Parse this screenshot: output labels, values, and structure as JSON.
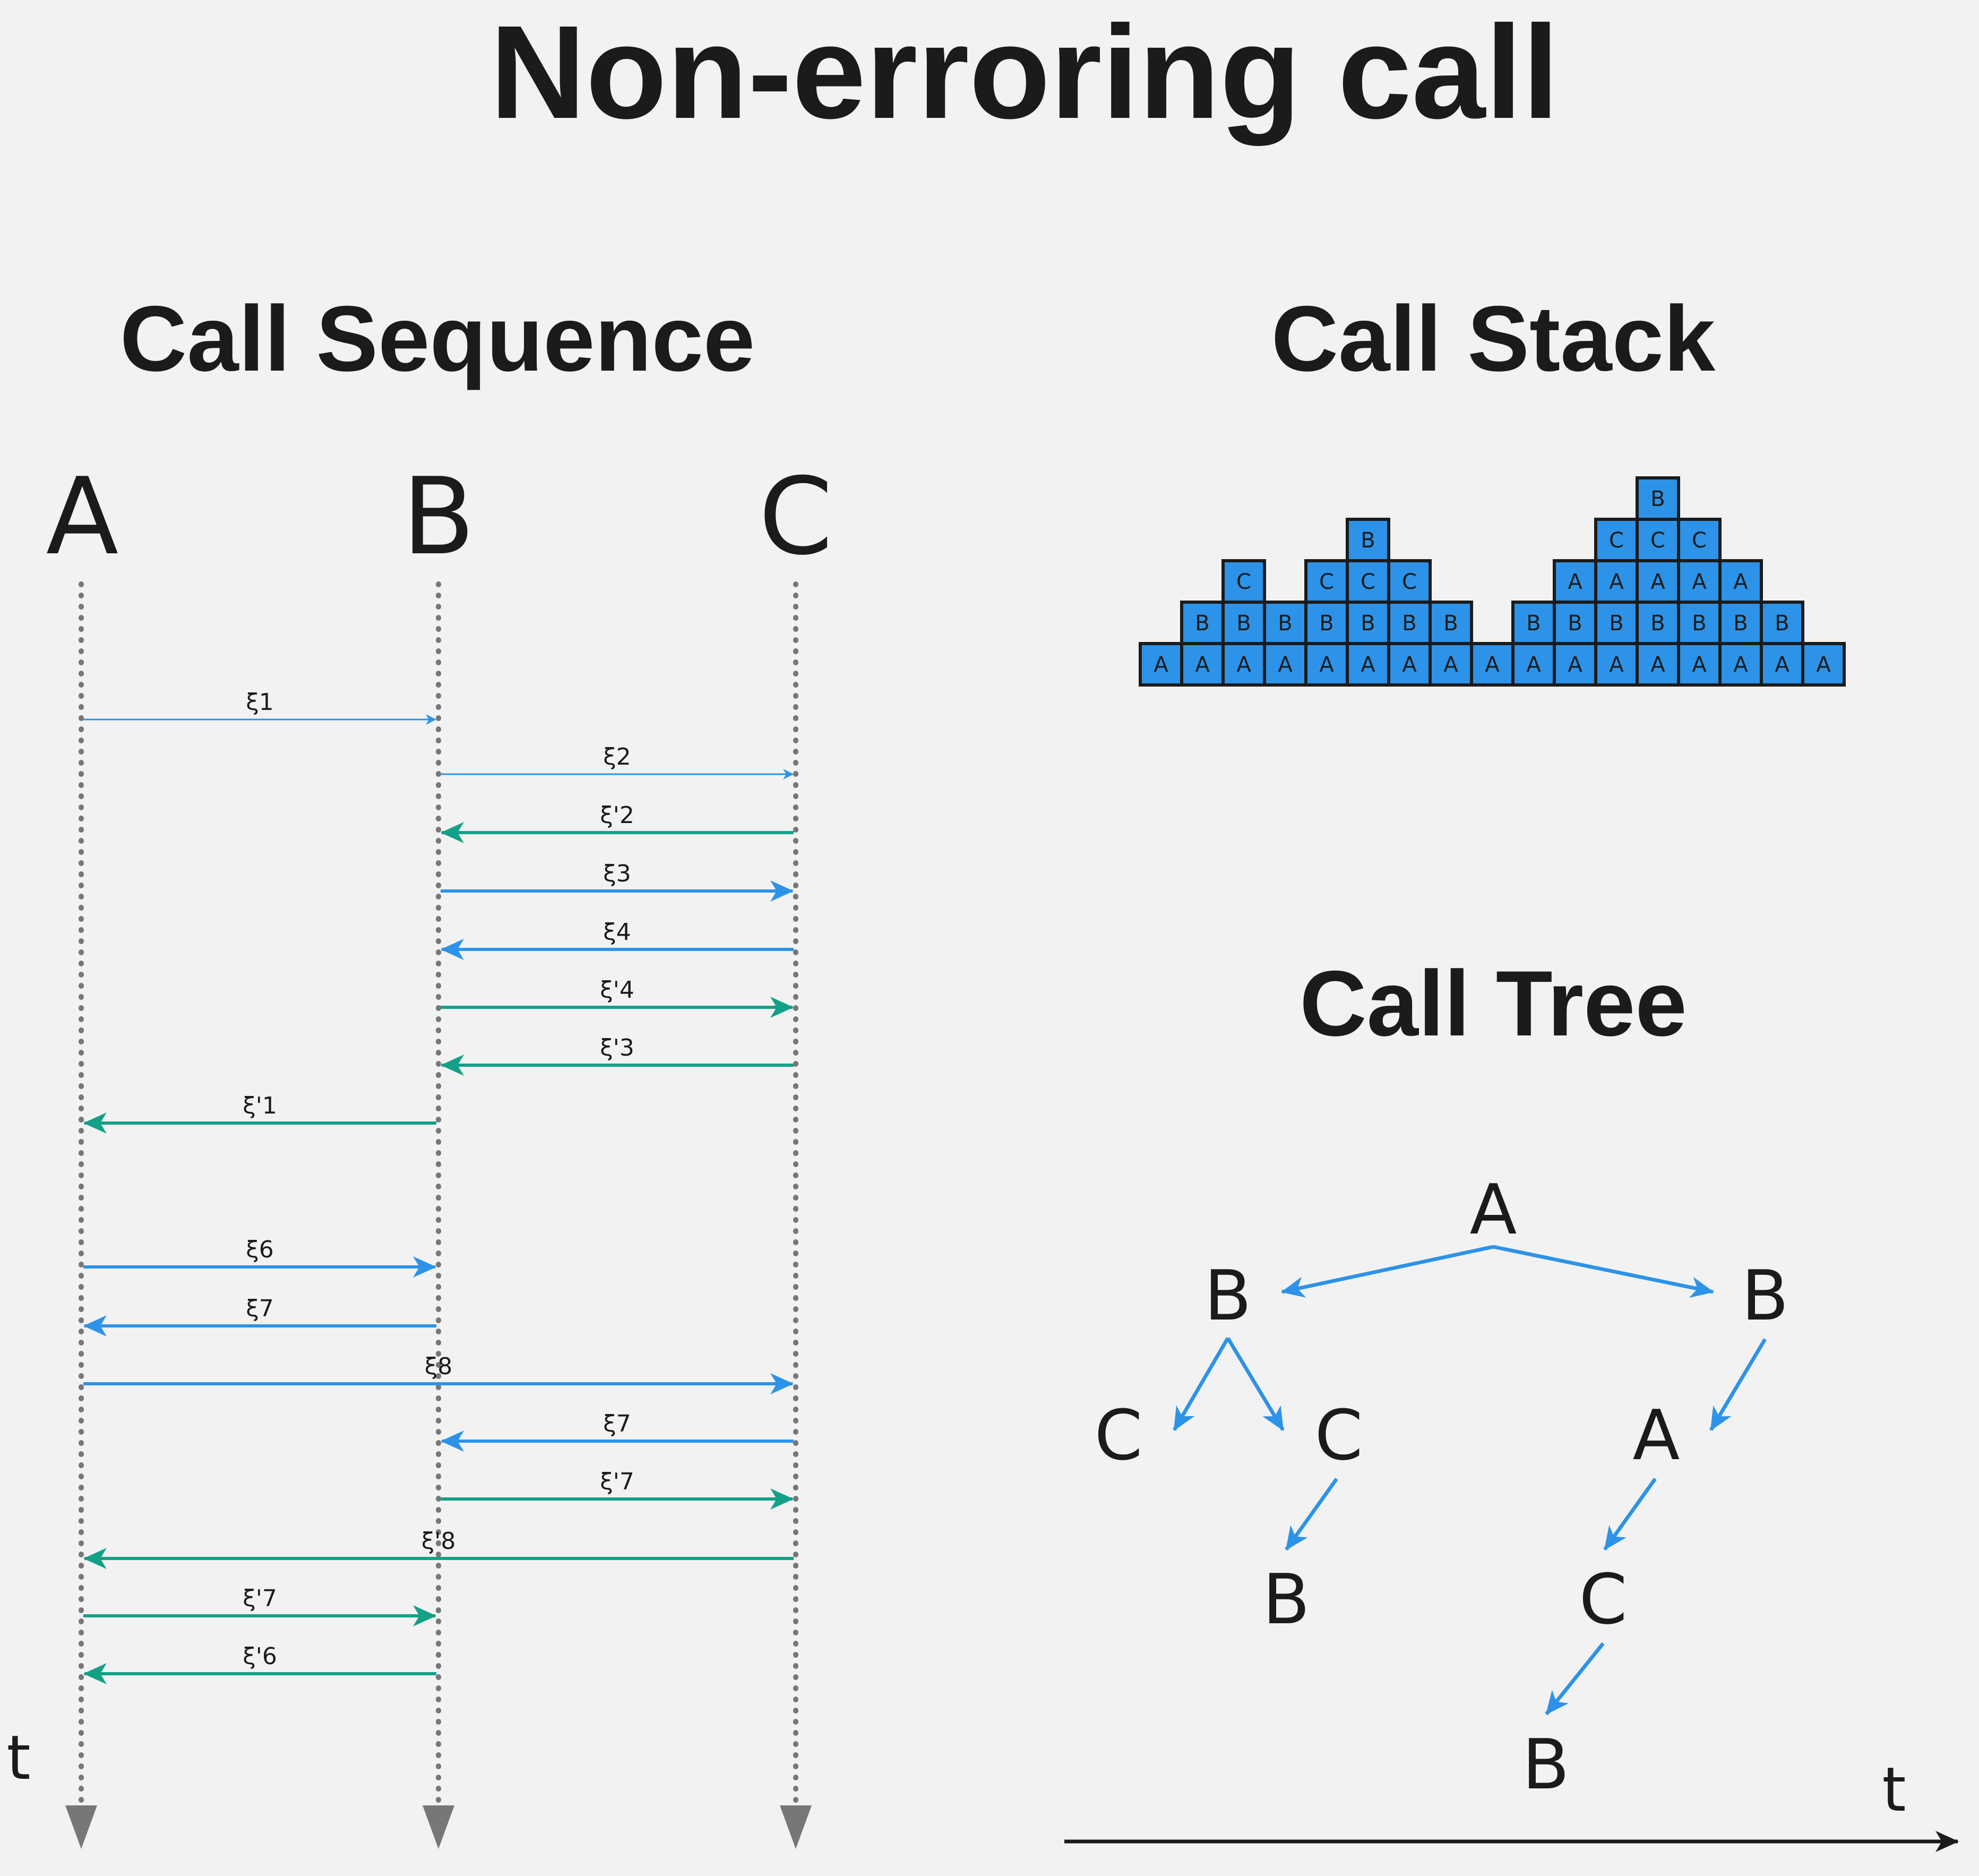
{
  "title": "Non-erroring call",
  "sequence": {
    "heading": "Call Sequence",
    "participants": [
      "A",
      "B",
      "C"
    ],
    "time_label": "t",
    "messages": [
      {
        "label": "ξ1",
        "from": "A",
        "to": "B",
        "kind": "call"
      },
      {
        "label": "ξ2",
        "from": "B",
        "to": "C",
        "kind": "call"
      },
      {
        "label": "ξ'2",
        "from": "C",
        "to": "B",
        "kind": "return"
      },
      {
        "label": "ξ3",
        "from": "B",
        "to": "C",
        "kind": "call"
      },
      {
        "label": "ξ4",
        "from": "C",
        "to": "B",
        "kind": "call"
      },
      {
        "label": "ξ'4",
        "from": "B",
        "to": "C",
        "kind": "return"
      },
      {
        "label": "ξ'3",
        "from": "C",
        "to": "B",
        "kind": "return"
      },
      {
        "label": "ξ'1",
        "from": "B",
        "to": "A",
        "kind": "return"
      },
      {
        "label": "ξ6",
        "from": "A",
        "to": "B",
        "kind": "call"
      },
      {
        "label": "ξ7",
        "from": "B",
        "to": "A",
        "kind": "call"
      },
      {
        "label": "ξ8",
        "from": "A",
        "to": "C",
        "kind": "call"
      },
      {
        "label": "ξ7",
        "from": "C",
        "to": "B",
        "kind": "call"
      },
      {
        "label": "ξ'7",
        "from": "B",
        "to": "C",
        "kind": "return"
      },
      {
        "label": "ξ'8",
        "from": "C",
        "to": "A",
        "kind": "return"
      },
      {
        "label": "ξ'7",
        "from": "A",
        "to": "B",
        "kind": "return"
      },
      {
        "label": "ξ'6",
        "from": "B",
        "to": "A",
        "kind": "return"
      }
    ]
  },
  "stack": {
    "heading": "Call Stack",
    "columns": [
      [
        "A"
      ],
      [
        "A",
        "B"
      ],
      [
        "A",
        "B",
        "C"
      ],
      [
        "A",
        "B"
      ],
      [
        "A",
        "B",
        "C"
      ],
      [
        "A",
        "B",
        "C",
        "B"
      ],
      [
        "A",
        "B",
        "C"
      ],
      [
        "A",
        "B"
      ],
      [
        "A"
      ],
      [
        "A",
        "B"
      ],
      [
        "A",
        "B",
        "A"
      ],
      [
        "A",
        "B",
        "A",
        "C"
      ],
      [
        "A",
        "B",
        "A",
        "C",
        "B"
      ],
      [
        "A",
        "B",
        "A",
        "C"
      ],
      [
        "A",
        "B",
        "A"
      ],
      [
        "A",
        "B"
      ],
      [
        "A"
      ]
    ]
  },
  "tree": {
    "heading": "Call Tree",
    "time_label": "t",
    "nodes": [
      {
        "id": "root",
        "label": "A"
      },
      {
        "id": "b1",
        "label": "B"
      },
      {
        "id": "b2",
        "label": "B"
      },
      {
        "id": "c1",
        "label": "C"
      },
      {
        "id": "c2",
        "label": "C"
      },
      {
        "id": "a2",
        "label": "A"
      },
      {
        "id": "b3",
        "label": "B"
      },
      {
        "id": "c3",
        "label": "C"
      },
      {
        "id": "b4",
        "label": "B"
      }
    ],
    "edges": [
      [
        "root",
        "b1"
      ],
      [
        "root",
        "b2"
      ],
      [
        "b1",
        "c1"
      ],
      [
        "b1",
        "c2"
      ],
      [
        "c2",
        "b3"
      ],
      [
        "b2",
        "a2"
      ],
      [
        "a2",
        "c3"
      ],
      [
        "c3",
        "b4"
      ]
    ]
  },
  "colors": {
    "call": "#2c93e8",
    "return": "#12a187",
    "lifeline": "#777777",
    "box_fill": "#2c93e8",
    "box_stroke": "#1b1b1b",
    "text": "#1b1b1b",
    "background": "#f2f2f2"
  }
}
